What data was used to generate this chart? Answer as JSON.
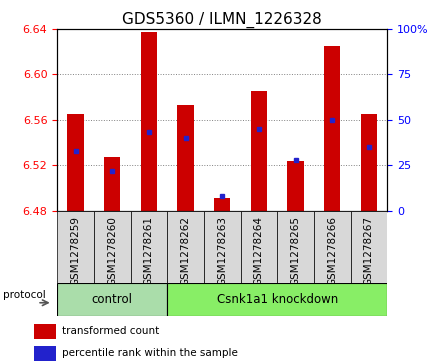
{
  "title": "GDS5360 / ILMN_1226328",
  "samples": [
    "GSM1278259",
    "GSM1278260",
    "GSM1278261",
    "GSM1278262",
    "GSM1278263",
    "GSM1278264",
    "GSM1278265",
    "GSM1278266",
    "GSM1278267"
  ],
  "bar_values": [
    6.565,
    6.527,
    6.637,
    6.573,
    6.491,
    6.585,
    6.524,
    6.625,
    6.565
  ],
  "percentile_values": [
    33,
    22,
    43,
    40,
    8,
    45,
    28,
    50,
    35
  ],
  "ymin": 6.48,
  "ymax": 6.64,
  "y2min": 0,
  "y2max": 100,
  "yticks": [
    6.48,
    6.52,
    6.56,
    6.6,
    6.64
  ],
  "y2ticks": [
    0,
    25,
    50,
    75,
    100
  ],
  "bar_color": "#cc0000",
  "percentile_color": "#2222cc",
  "bar_width": 0.45,
  "groups": [
    {
      "label": "control",
      "start": 0,
      "end": 3,
      "color": "#aaddaa"
    },
    {
      "label": "Csnk1a1 knockdown",
      "start": 3,
      "end": 9,
      "color": "#88ee66"
    }
  ],
  "protocol_label": "protocol",
  "legend_items": [
    {
      "label": "transformed count",
      "color": "#cc0000"
    },
    {
      "label": "percentile rank within the sample",
      "color": "#2222cc"
    }
  ],
  "plot_bg": "#ffffff",
  "xtick_bg": "#d8d8d8",
  "title_fontsize": 11,
  "tick_fontsize": 8,
  "label_fontsize": 8
}
